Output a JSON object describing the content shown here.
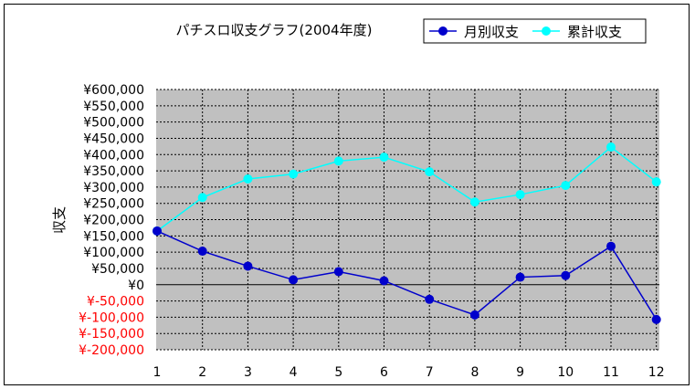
{
  "chart_data": {
    "type": "line",
    "title": "パチスロ収支グラフ(2004年度)",
    "xlabel": "",
    "ylabel": "収支",
    "ylim": [
      -200000,
      600000
    ],
    "yticks": [
      600000,
      550000,
      500000,
      450000,
      400000,
      350000,
      300000,
      250000,
      200000,
      150000,
      100000,
      50000,
      0,
      -50000,
      -100000,
      -150000,
      -200000
    ],
    "ytick_labels": [
      "¥600,000",
      "¥550,000",
      "¥500,000",
      "¥450,000",
      "¥400,000",
      "¥350,000",
      "¥300,000",
      "¥250,000",
      "¥200,000",
      "¥150,000",
      "¥100,000",
      "¥50,000",
      "¥0",
      "¥-50,000",
      "¥-100,000",
      "¥-150,000",
      "¥-200,000"
    ],
    "categories": [
      "1",
      "2",
      "3",
      "4",
      "5",
      "6",
      "7",
      "8",
      "9",
      "10",
      "11",
      "12"
    ],
    "grid": true,
    "legend_position": "top-right",
    "colors": {
      "plot_bg": "#c0c0c0",
      "negative_label": "#ff0000",
      "axis_label": "#000000"
    },
    "series": [
      {
        "name": "月別収支",
        "color": "#0000cc",
        "values": [
          165000,
          103000,
          57000,
          15000,
          40000,
          12000,
          -45000,
          -93000,
          23000,
          28000,
          118000,
          -107000
        ]
      },
      {
        "name": "累計収支",
        "color": "#00ffff",
        "values": [
          165000,
          268000,
          325000,
          340000,
          380000,
          392000,
          347000,
          254000,
          277000,
          305000,
          423000,
          316000
        ]
      }
    ]
  }
}
